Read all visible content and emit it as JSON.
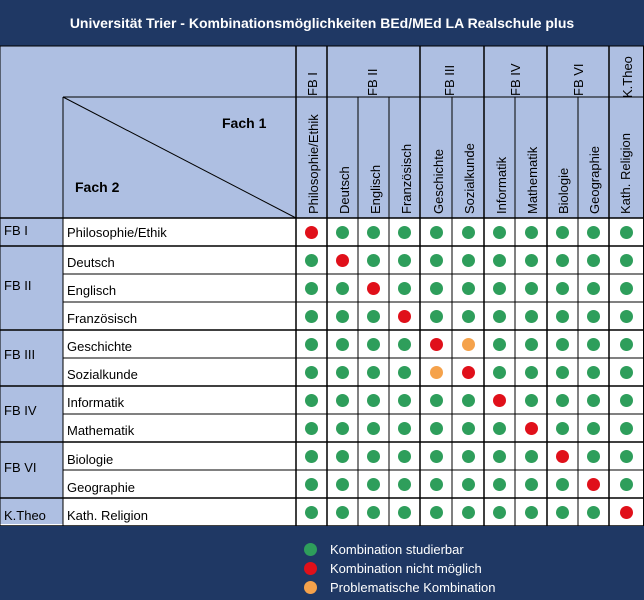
{
  "title": "Universität Trier - Kombinationsmöglichkeiten BEd/MEd LA Realschule plus",
  "header": {
    "fach1": "Fach 1",
    "fach2": "Fach 2"
  },
  "groups": [
    "FB I",
    "FB II",
    "FB III",
    "FB IV",
    "FB VI",
    "K.Theo"
  ],
  "subjects": [
    "Philosophie/Ethik",
    "Deutsch",
    "Englisch",
    "Französisch",
    "Geschichte",
    "Sozialkunde",
    "Informatik",
    "Mathematik",
    "Biologie",
    "Geographie",
    "Kath. Religion"
  ],
  "matrix": [
    [
      "red",
      "green",
      "green",
      "green",
      "green",
      "green",
      "green",
      "green",
      "green",
      "green",
      "green"
    ],
    [
      "green",
      "red",
      "green",
      "green",
      "green",
      "green",
      "green",
      "green",
      "green",
      "green",
      "green"
    ],
    [
      "green",
      "green",
      "red",
      "green",
      "green",
      "green",
      "green",
      "green",
      "green",
      "green",
      "green"
    ],
    [
      "green",
      "green",
      "green",
      "red",
      "green",
      "green",
      "green",
      "green",
      "green",
      "green",
      "green"
    ],
    [
      "green",
      "green",
      "green",
      "green",
      "red",
      "orange",
      "green",
      "green",
      "green",
      "green",
      "green"
    ],
    [
      "green",
      "green",
      "green",
      "green",
      "orange",
      "red",
      "green",
      "green",
      "green",
      "green",
      "green"
    ],
    [
      "green",
      "green",
      "green",
      "green",
      "green",
      "green",
      "red",
      "green",
      "green",
      "green",
      "green"
    ],
    [
      "green",
      "green",
      "green",
      "green",
      "green",
      "green",
      "green",
      "red",
      "green",
      "green",
      "green"
    ],
    [
      "green",
      "green",
      "green",
      "green",
      "green",
      "green",
      "green",
      "green",
      "red",
      "green",
      "green"
    ],
    [
      "green",
      "green",
      "green",
      "green",
      "green",
      "green",
      "green",
      "green",
      "green",
      "red",
      "green"
    ],
    [
      "green",
      "green",
      "green",
      "green",
      "green",
      "green",
      "green",
      "green",
      "green",
      "green",
      "red"
    ]
  ],
  "legend": [
    {
      "label": "Kombination studierbar",
      "color": "#2e9e5b"
    },
    {
      "label": "Kombination nicht möglich",
      "color": "#e0101a"
    },
    {
      "label": "Problematische Kombination",
      "color": "#f5a24b"
    }
  ],
  "colors": {
    "green": "#2e9e5b",
    "red": "#e0101a",
    "orange": "#f5a24b",
    "header_bg": "#aebfe2",
    "title_bg": "#1f3864"
  }
}
